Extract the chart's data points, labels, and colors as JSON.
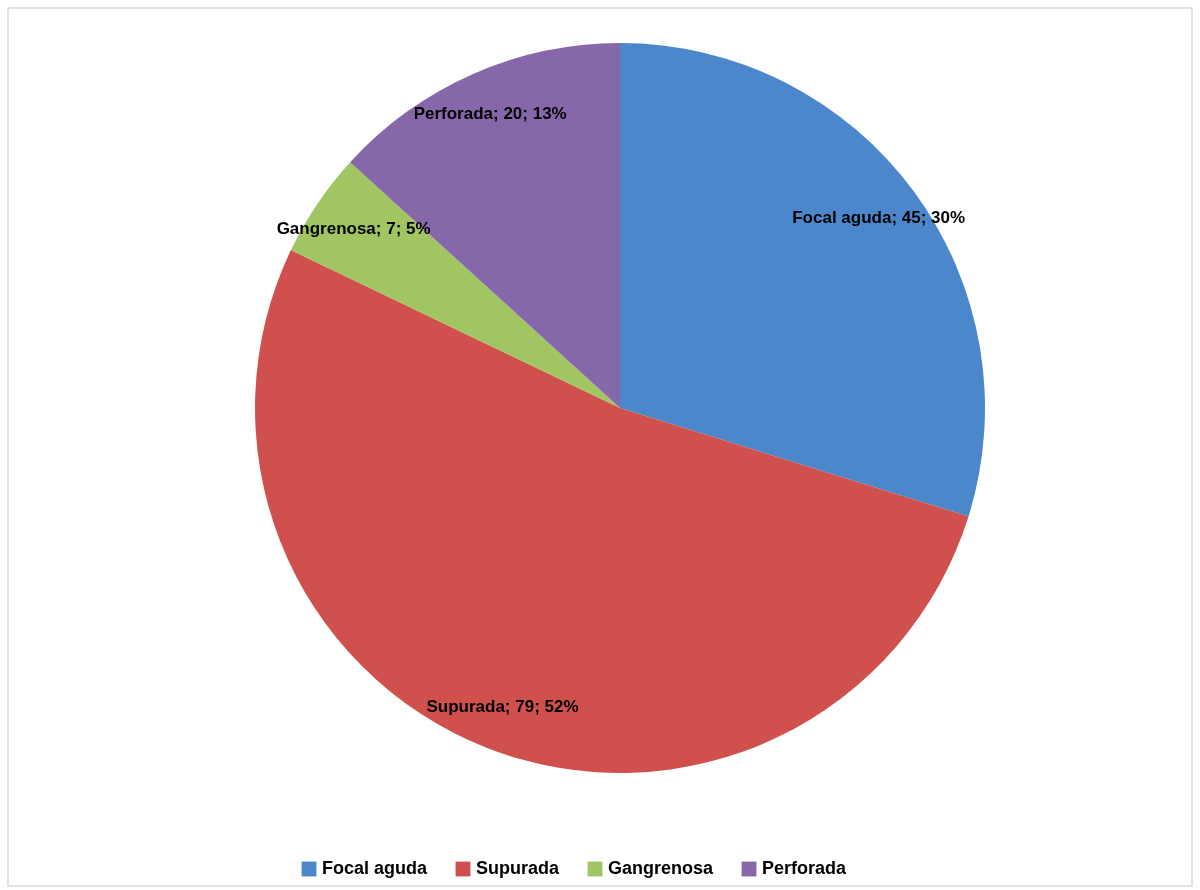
{
  "chart_data": {
    "type": "pie",
    "categories": [
      "Focal aguda",
      "Supurada",
      "Gangrenosa",
      "Perforada"
    ],
    "values": [
      45,
      79,
      7,
      20
    ],
    "colors": [
      "#4d87cb",
      "#d0504d",
      "#a2c563",
      "#8667aa"
    ],
    "value_labels": [
      "Focal aguda; 45; 30%",
      "Supurada; 79; 52%",
      "Gangrenosa; 7; 5%",
      "Perforada; 20; 13%"
    ],
    "legend": "bottom"
  }
}
